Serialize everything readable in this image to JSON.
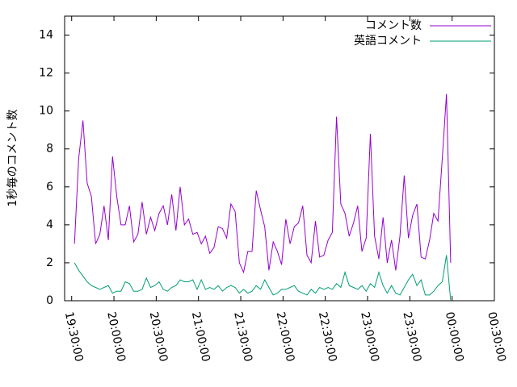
{
  "chart_data": {
    "type": "line",
    "ylabel": "1秒毎のコメント数",
    "x": [
      "19:32:00",
      "19:35:00",
      "19:38:00",
      "19:41:00",
      "19:44:00",
      "19:47:00",
      "19:50:00",
      "19:53:00",
      "19:56:00",
      "19:59:00",
      "20:02:00",
      "20:05:00",
      "20:08:00",
      "20:11:00",
      "20:14:00",
      "20:17:00",
      "20:20:00",
      "20:23:00",
      "20:26:00",
      "20:29:00",
      "20:32:00",
      "20:35:00",
      "20:38:00",
      "20:41:00",
      "20:44:00",
      "20:47:00",
      "20:50:00",
      "20:53:00",
      "20:56:00",
      "20:59:00",
      "21:02:00",
      "21:05:00",
      "21:08:00",
      "21:11:00",
      "21:14:00",
      "21:17:00",
      "21:20:00",
      "21:23:00",
      "21:26:00",
      "21:29:00",
      "21:32:00",
      "21:35:00",
      "21:38:00",
      "21:41:00",
      "21:44:00",
      "21:47:00",
      "21:50:00",
      "21:53:00",
      "21:56:00",
      "21:59:00",
      "22:02:00",
      "22:05:00",
      "22:08:00",
      "22:11:00",
      "22:14:00",
      "22:17:00",
      "22:20:00",
      "22:23:00",
      "22:26:00",
      "22:29:00",
      "22:32:00",
      "22:35:00",
      "22:38:00",
      "22:41:00",
      "22:44:00",
      "22:47:00",
      "22:50:00",
      "22:53:00",
      "22:56:00",
      "22:59:00",
      "23:02:00",
      "23:05:00",
      "23:08:00",
      "23:11:00",
      "23:14:00",
      "23:17:00",
      "23:20:00",
      "23:23:00",
      "23:26:00",
      "23:29:00",
      "23:32:00",
      "23:35:00",
      "23:38:00",
      "23:41:00",
      "23:44:00",
      "23:47:00",
      "23:50:00",
      "23:53:00",
      "23:56:00",
      "23:59:00"
    ],
    "series": [
      {
        "name": "コメント数",
        "color": "#9400d3",
        "values": [
          3,
          7.5,
          9.5,
          6.2,
          5.5,
          3,
          3.5,
          5,
          3.2,
          7.6,
          5.5,
          4,
          4,
          5,
          3.1,
          3.5,
          5.2,
          3.5,
          4.4,
          3.7,
          4.6,
          5,
          4,
          5.6,
          3.7,
          6,
          4,
          4.3,
          3.5,
          3.6,
          3,
          3.4,
          2.5,
          2.8,
          3.9,
          3.8,
          3.3,
          5.1,
          4.7,
          2,
          1.5,
          2.6,
          2.6,
          5.8,
          4.8,
          3.9,
          1.6,
          3.1,
          2.6,
          1.9,
          4.3,
          3,
          3.9,
          4.1,
          5,
          2.4,
          2,
          4.2,
          2.3,
          2.4,
          3.2,
          3.6,
          9.7,
          5.1,
          4.6,
          3.4,
          4.1,
          5,
          2.6,
          3.3,
          8.8,
          3.4,
          2.2,
          4.4,
          2,
          3.2,
          1.6,
          3.4,
          6.6,
          3.3,
          4.5,
          5.1,
          2.3,
          2.2,
          3.2,
          4.6,
          4.2,
          7.5,
          10.9,
          2
        ]
      },
      {
        "name": "英語コメント",
        "color": "#009e73",
        "values": [
          2,
          1.6,
          1.3,
          1,
          0.8,
          0.7,
          0.6,
          0.7,
          0.8,
          0.4,
          0.5,
          0.5,
          1,
          0.9,
          0.5,
          0.5,
          0.6,
          1.2,
          0.7,
          0.8,
          1,
          0.6,
          0.5,
          0.7,
          0.8,
          1.1,
          1,
          1,
          1.1,
          0.6,
          1.1,
          0.6,
          0.7,
          0.6,
          0.8,
          0.5,
          0.7,
          0.8,
          0.7,
          0.4,
          0.6,
          0.4,
          0.5,
          0.8,
          0.6,
          1.1,
          0.7,
          0.3,
          0.4,
          0.6,
          0.6,
          0.7,
          0.8,
          0.5,
          0.4,
          0.3,
          0.6,
          0.4,
          0.7,
          0.6,
          0.7,
          0.6,
          0.9,
          0.7,
          1.5,
          0.8,
          0.7,
          0.6,
          0.8,
          0.5,
          0.9,
          0.7,
          1.5,
          0.8,
          0.4,
          0.8,
          0.4,
          0.3,
          0.7,
          1.1,
          1.4,
          0.8,
          1.1,
          0.3,
          0.3,
          0.5,
          0.8,
          1,
          2.4,
          0
        ]
      }
    ],
    "xlim": [
      "19:25:00",
      "00:30:00"
    ],
    "xticks": [
      "19:30:00",
      "20:00:00",
      "20:30:00",
      "21:00:00",
      "21:30:00",
      "22:00:00",
      "22:30:00",
      "23:00:00",
      "23:30:00",
      "00:00:00",
      "00:30:00"
    ],
    "ylim": [
      0,
      15
    ],
    "yticks": [
      0,
      2,
      4,
      6,
      8,
      10,
      12,
      14
    ],
    "legend": "upper-right"
  }
}
